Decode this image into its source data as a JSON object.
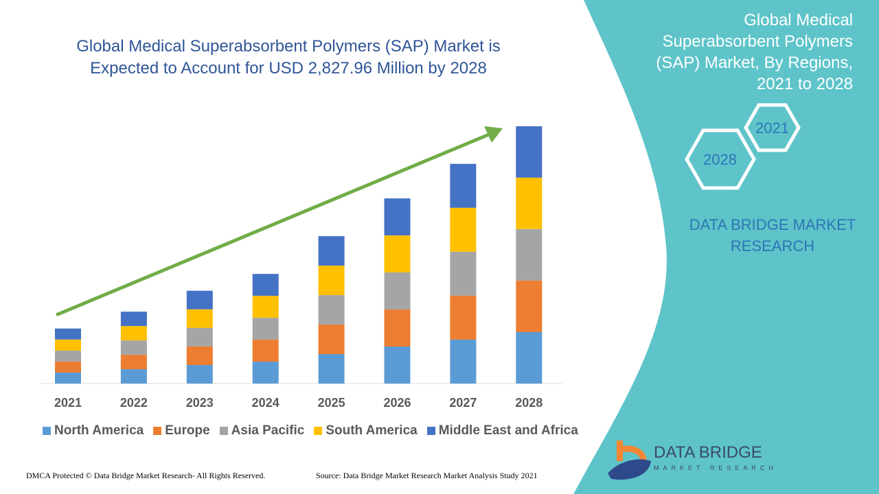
{
  "title": "Global Medical Superabsorbent Polymers (SAP) Market is Expected to Account for USD 2,827.96 Million by 2028",
  "side_panel": {
    "title": "Global Medical Superabsorbent Polymers (SAP) Market, By Regions, 2021 to 2028",
    "hex_1": "2021",
    "hex_2": "2028",
    "brand": "DATA BRIDGE MARKET RESEARCH",
    "color": "#5EC4C9"
  },
  "footer": {
    "left": "DMCA Protected © Data Bridge Market Research- All Rights Reserved.",
    "right": "Source: Data Bridge Market Research Market Analysis Study 2021"
  },
  "logo": {
    "name": "DATA BRIDGE",
    "sub": "MARKET RESEARCH"
  },
  "chart_data": {
    "type": "bar",
    "stacked": true,
    "title": "Global Medical Superabsorbent Polymers (SAP) Market is Expected to Account for USD 2,827.96 Million by 2028",
    "xlabel": "",
    "ylabel": "",
    "ylim": [
      0,
      2828
    ],
    "grid": false,
    "legend": "bottom",
    "trend_arrow": true,
    "categories": [
      "2021",
      "2022",
      "2023",
      "2024",
      "2025",
      "2026",
      "2027",
      "2028"
    ],
    "series": [
      {
        "name": "North America",
        "color": "#5B9BD5",
        "values": [
          121,
          158,
          204,
          241,
          324,
          407,
          483,
          566
        ]
      },
      {
        "name": "Europe",
        "color": "#ED7D31",
        "values": [
          121,
          158,
          204,
          241,
          324,
          407,
          483,
          566
        ]
      },
      {
        "name": "Asia Pacific",
        "color": "#A5A5A5",
        "values": [
          121,
          158,
          204,
          241,
          324,
          407,
          483,
          566
        ]
      },
      {
        "name": "South America",
        "color": "#FFC000",
        "values": [
          121,
          158,
          204,
          241,
          324,
          407,
          483,
          565
        ]
      },
      {
        "name": "Middle East and Africa",
        "color": "#4472C4",
        "values": [
          121,
          158,
          204,
          241,
          324,
          407,
          483,
          565
        ]
      }
    ]
  }
}
